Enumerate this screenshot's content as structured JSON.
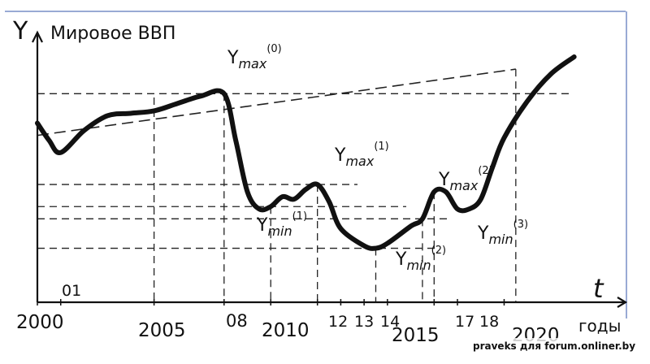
{
  "chart_data": {
    "type": "line",
    "y_axis_symbol": "Y",
    "title": "Мировое ВВП",
    "x_axis_symbol": "t",
    "x_unit": "годы",
    "xlim": [
      2000,
      2023.5
    ],
    "ylim": [
      0,
      100
    ],
    "tick_labels": [
      {
        "x": 2000,
        "label": "2000"
      },
      {
        "x": 2001,
        "label": "01"
      },
      {
        "x": 2005,
        "label": "2005"
      },
      {
        "x": 2008,
        "label": "08"
      },
      {
        "x": 2010,
        "label": "2010"
      },
      {
        "x": 2012,
        "label": "12"
      },
      {
        "x": 2013,
        "label": "13"
      },
      {
        "x": 2014,
        "label": "14"
      },
      {
        "x": 2015,
        "label": "2015"
      },
      {
        "x": 2017,
        "label": "17"
      },
      {
        "x": 2018,
        "label": "18"
      },
      {
        "x": 2020,
        "label": "2020"
      }
    ],
    "series": [
      {
        "x": [
          2000,
          2000.5,
          2001,
          2002,
          2003,
          2004,
          2005,
          2006,
          2007,
          2008,
          2008.5,
          2009,
          2009.5,
          2010,
          2010.5,
          2011,
          2011.5,
          2012,
          2012.5,
          2013,
          2014,
          2014.5,
          2015,
          2016,
          2016.5,
          2017,
          2017.5,
          2018,
          2018.5,
          2019,
          2019.5,
          2020,
          2021,
          2022,
          2023
        ],
        "y": [
          73,
          66,
          61,
          70,
          76,
          77,
          78,
          81,
          84,
          85,
          66,
          45,
          38,
          39,
          43,
          42,
          46,
          48,
          41,
          30,
          23,
          22,
          24,
          31,
          34,
          45,
          45,
          38,
          38,
          42,
          55,
          67,
          82,
          93,
          100
        ]
      }
    ],
    "trend_line": {
      "x": [
        2000,
        2020.5
      ],
      "y": [
        68,
        95
      ]
    },
    "annotations": [
      {
        "base": "Y",
        "sub": "max",
        "sup": "(0)",
        "x": 2008,
        "y": 85
      },
      {
        "base": "Y",
        "sub": "max",
        "sup": "(1)",
        "x": 2012,
        "y": 48
      },
      {
        "base": "Y",
        "sub": "min",
        "sup": "(1)",
        "x": 2010,
        "y": 39
      },
      {
        "base": "Y",
        "sub": "min",
        "sup": "(2)",
        "x": 2014.5,
        "y": 22
      },
      {
        "base": "Y",
        "sub": "max",
        "sup": "(2)",
        "x": 2017,
        "y": 45
      },
      {
        "base": "Y",
        "sub": "min",
        "sup": "(3)",
        "x": 2018.5,
        "y": 38
      }
    ],
    "guides": {
      "vertical_x": [
        2005,
        2008,
        2010,
        2012,
        2014.5,
        2016.5,
        2017,
        2020.5
      ],
      "horizontal_y": [
        85,
        48,
        39,
        34,
        22
      ]
    },
    "grid": false,
    "legend": "none"
  },
  "watermark": "praveks для forum.onliner.by"
}
